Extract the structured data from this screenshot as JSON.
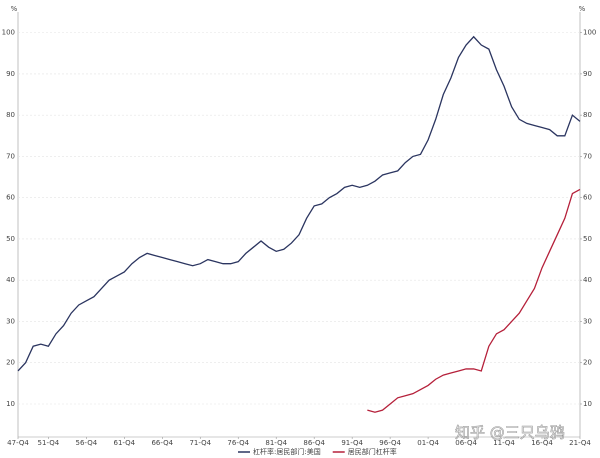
{
  "chart_data": {
    "type": "line",
    "y_unit": "%",
    "y2_unit": "%",
    "categories": [
      "47-Q4",
      null,
      null,
      null,
      "51-Q4",
      null,
      null,
      null,
      null,
      "56-Q4",
      null,
      null,
      null,
      null,
      "61-Q4",
      null,
      null,
      null,
      null,
      "66-Q4",
      null,
      null,
      null,
      null,
      "71-Q4",
      null,
      null,
      null,
      null,
      "76-Q4",
      null,
      null,
      null,
      null,
      "81-Q4",
      null,
      null,
      null,
      null,
      "86-Q4",
      null,
      null,
      null,
      null,
      "91-Q4",
      null,
      null,
      null,
      null,
      "96-Q4",
      null,
      null,
      null,
      null,
      "01-Q4",
      null,
      null,
      null,
      null,
      "06-Q4",
      null,
      null,
      null,
      null,
      "11-Q4",
      null,
      null,
      null,
      null,
      "16-Q4",
      null,
      null,
      null,
      null,
      "21-Q4"
    ],
    "series": [
      {
        "name": "杠杆率:居民部门:美国",
        "color": "#2b3560",
        "axis": "y",
        "values": [
          18,
          20,
          24,
          24.5,
          24,
          27,
          29,
          32,
          34,
          35,
          36,
          38,
          40,
          41,
          42,
          44,
          45.5,
          46.5,
          46,
          45.5,
          45,
          44.5,
          44,
          43.5,
          44,
          45,
          44.5,
          44,
          44,
          44.5,
          46.5,
          48,
          49.5,
          48,
          47,
          47.5,
          49,
          51,
          55,
          58,
          58.5,
          60,
          61,
          62.5,
          63,
          62.5,
          63,
          64,
          65.5,
          66,
          66.5,
          68.5,
          70,
          70.5,
          74,
          79,
          85,
          89,
          94,
          97,
          99,
          97,
          96,
          91,
          87,
          82,
          79,
          78,
          77.5,
          77,
          76.5,
          75,
          75,
          80,
          78.5
        ]
      },
      {
        "name": "居民部门杠杆率",
        "color": "#b5203a",
        "axis": "y2",
        "values": [
          null,
          null,
          null,
          null,
          null,
          null,
          null,
          null,
          null,
          null,
          null,
          null,
          null,
          null,
          null,
          null,
          null,
          null,
          null,
          null,
          null,
          null,
          null,
          null,
          null,
          null,
          null,
          null,
          null,
          null,
          null,
          null,
          null,
          null,
          null,
          null,
          null,
          null,
          null,
          null,
          null,
          null,
          null,
          null,
          null,
          null,
          8.5,
          8,
          8.5,
          10,
          11.5,
          12,
          12.5,
          13.5,
          14.5,
          16,
          17,
          17.5,
          18,
          18.5,
          18.5,
          18,
          24,
          27,
          28,
          30,
          32,
          35,
          38,
          43,
          47,
          51,
          55,
          61,
          62
        ]
      }
    ],
    "ylim": [
      2,
      105
    ],
    "yticks": [
      10,
      20,
      30,
      40,
      50,
      60,
      70,
      80,
      90,
      100
    ],
    "y2lim": [
      2,
      105
    ],
    "y2ticks": [
      10,
      20,
      30,
      40,
      50,
      60,
      70,
      80,
      90,
      100
    ],
    "grid": true,
    "legend": "bottom",
    "watermark": "知乎 @三只乌鸦"
  }
}
